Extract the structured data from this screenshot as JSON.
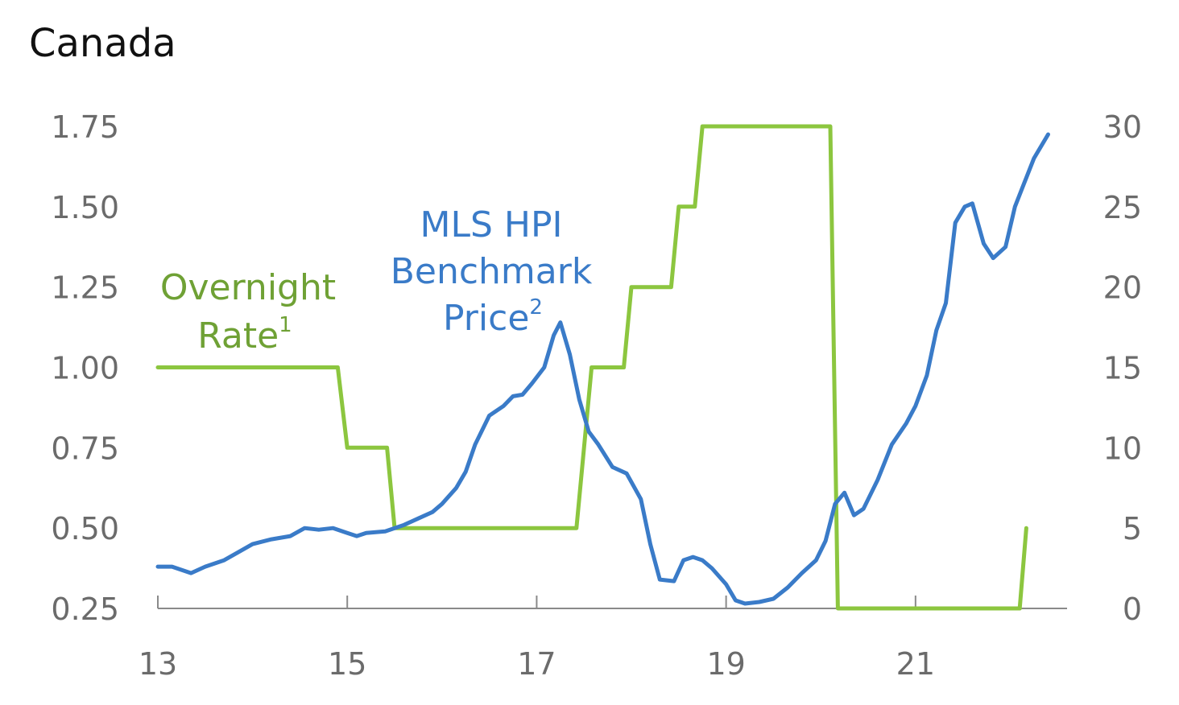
{
  "chart_data": {
    "type": "line",
    "title": "Canada",
    "x_ticks": [
      "13",
      "15",
      "17",
      "19",
      "21"
    ],
    "x_range": [
      2013,
      2022.6
    ],
    "y_left": {
      "ticks": [
        "0.25",
        "0.50",
        "0.75",
        "1.00",
        "1.25",
        "1.50",
        "1.75"
      ],
      "range": [
        0.25,
        1.75
      ]
    },
    "y_right": {
      "ticks": [
        "0",
        "5",
        "10",
        "15",
        "20",
        "25",
        "30"
      ],
      "range": [
        0,
        30
      ]
    },
    "grid": false,
    "colors": {
      "overnight": "#8cc63f",
      "mls": "#3a7bc8",
      "overnight_label": "#6fa135",
      "mls_label": "#3a7bc8",
      "axis": "#8a8a8a"
    },
    "annotations": {
      "overnight": {
        "line1": "Overnight",
        "line2": "Rate",
        "sup": "1"
      },
      "mls": {
        "line1": "MLS HPI",
        "line2": "Benchmark",
        "line3": "Price",
        "sup": "2"
      }
    },
    "series": [
      {
        "axis": "left",
        "step": true,
        "points": [
          [
            2013.0,
            1.0
          ],
          [
            2014.9,
            1.0
          ],
          [
            2015.0,
            0.75
          ],
          [
            2015.42,
            0.75
          ],
          [
            2015.5,
            0.5
          ],
          [
            2017.42,
            0.5
          ],
          [
            2017.5,
            0.75
          ],
          [
            2017.58,
            1.0
          ],
          [
            2017.92,
            1.0
          ],
          [
            2018.0,
            1.25
          ],
          [
            2018.42,
            1.25
          ],
          [
            2018.5,
            1.5
          ],
          [
            2018.67,
            1.5
          ],
          [
            2018.75,
            1.75
          ],
          [
            2020.1,
            1.75
          ],
          [
            2020.18,
            0.25
          ],
          [
            2022.1,
            0.25
          ],
          [
            2022.17,
            0.5
          ]
        ]
      },
      {
        "axis": "right",
        "points": [
          [
            2013.0,
            2.6
          ],
          [
            2013.15,
            2.6
          ],
          [
            2013.35,
            2.2
          ],
          [
            2013.5,
            2.6
          ],
          [
            2013.7,
            3.0
          ],
          [
            2013.85,
            3.5
          ],
          [
            2014.0,
            4.0
          ],
          [
            2014.2,
            4.3
          ],
          [
            2014.4,
            4.5
          ],
          [
            2014.55,
            5.0
          ],
          [
            2014.7,
            4.9
          ],
          [
            2014.85,
            5.0
          ],
          [
            2015.0,
            4.7
          ],
          [
            2015.1,
            4.5
          ],
          [
            2015.2,
            4.7
          ],
          [
            2015.4,
            4.8
          ],
          [
            2015.6,
            5.2
          ],
          [
            2015.75,
            5.6
          ],
          [
            2015.9,
            6.0
          ],
          [
            2016.0,
            6.5
          ],
          [
            2016.15,
            7.5
          ],
          [
            2016.25,
            8.5
          ],
          [
            2016.35,
            10.2
          ],
          [
            2016.5,
            12.0
          ],
          [
            2016.65,
            12.6
          ],
          [
            2016.75,
            13.2
          ],
          [
            2016.85,
            13.3
          ],
          [
            2016.95,
            14.0
          ],
          [
            2017.08,
            15.0
          ],
          [
            2017.18,
            17.0
          ],
          [
            2017.25,
            17.8
          ],
          [
            2017.35,
            15.8
          ],
          [
            2017.45,
            13.0
          ],
          [
            2017.55,
            11.0
          ],
          [
            2017.65,
            10.2
          ],
          [
            2017.8,
            8.8
          ],
          [
            2017.95,
            8.4
          ],
          [
            2018.1,
            6.8
          ],
          [
            2018.2,
            4.0
          ],
          [
            2018.3,
            1.8
          ],
          [
            2018.45,
            1.7
          ],
          [
            2018.55,
            3.0
          ],
          [
            2018.65,
            3.2
          ],
          [
            2018.75,
            3.0
          ],
          [
            2018.85,
            2.5
          ],
          [
            2019.0,
            1.5
          ],
          [
            2019.1,
            0.5
          ],
          [
            2019.2,
            0.3
          ],
          [
            2019.35,
            0.4
          ],
          [
            2019.5,
            0.6
          ],
          [
            2019.65,
            1.3
          ],
          [
            2019.8,
            2.2
          ],
          [
            2019.95,
            3.0
          ],
          [
            2020.05,
            4.2
          ],
          [
            2020.15,
            6.5
          ],
          [
            2020.25,
            7.2
          ],
          [
            2020.35,
            5.8
          ],
          [
            2020.45,
            6.2
          ],
          [
            2020.6,
            8.0
          ],
          [
            2020.75,
            10.2
          ],
          [
            2020.9,
            11.5
          ],
          [
            2021.0,
            12.6
          ],
          [
            2021.12,
            14.5
          ],
          [
            2021.22,
            17.3
          ],
          [
            2021.32,
            19.0
          ],
          [
            2021.42,
            24.0
          ],
          [
            2021.52,
            25.0
          ],
          [
            2021.6,
            25.2
          ],
          [
            2021.72,
            22.7
          ],
          [
            2021.82,
            21.8
          ],
          [
            2021.95,
            22.5
          ],
          [
            2022.05,
            25.0
          ],
          [
            2022.25,
            28.0
          ],
          [
            2022.4,
            29.5
          ]
        ]
      }
    ]
  }
}
